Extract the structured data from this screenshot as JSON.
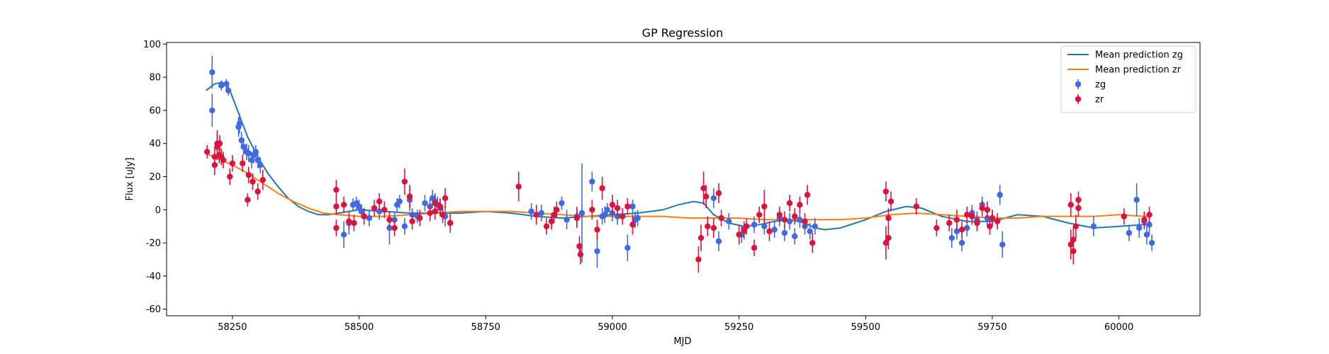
{
  "chart_data": {
    "type": "scatter",
    "title": "GP Regression",
    "xlabel": "MJD",
    "ylabel": "Flux [uJy]",
    "xlim": [
      58120,
      60160
    ],
    "ylim": [
      -64,
      101
    ],
    "xticks": [
      58250,
      58500,
      58750,
      59000,
      59250,
      59500,
      59750,
      60000
    ],
    "yticks": [
      -60,
      -40,
      -20,
      0,
      20,
      40,
      60,
      80,
      100
    ],
    "grid": false,
    "legend_position": "top-right",
    "legend": [
      {
        "label": "Mean prediction zg",
        "kind": "line",
        "color": "#1f77b4"
      },
      {
        "label": "Mean prediction zr",
        "kind": "line",
        "color": "#ff7f0e"
      },
      {
        "label": "zg",
        "kind": "errorbar",
        "color": "#4169e1"
      },
      {
        "label": "zr",
        "kind": "errorbar",
        "color": "#dc143c"
      }
    ],
    "lines": [
      {
        "name": "Mean prediction zg",
        "color": "#1f77b4",
        "x": [
          58198,
          58215,
          58230,
          58245,
          58260,
          58280,
          58300,
          58320,
          58340,
          58360,
          58380,
          58400,
          58420,
          58440,
          58460,
          58500,
          58550,
          58600,
          58650,
          58700,
          58750,
          58800,
          58850,
          58900,
          58950,
          59000,
          59050,
          59100,
          59130,
          59160,
          59180,
          59200,
          59230,
          59260,
          59290,
          59320,
          59350,
          59380,
          59400,
          59420,
          59450,
          59500,
          59540,
          59580,
          59610,
          59650,
          59700,
          59750,
          59800,
          59850,
          59900,
          59950,
          60000,
          60050,
          60065
        ],
        "y": [
          72,
          76,
          77,
          72,
          60,
          44,
          32,
          22,
          14,
          7,
          2,
          -1,
          -3,
          -3,
          -2,
          0,
          -1,
          -2,
          -2,
          -2,
          -1,
          -2,
          -4,
          -5,
          -4,
          -3,
          -2,
          0,
          3,
          5,
          4,
          -3,
          -8,
          -10,
          -9,
          -7,
          -6,
          -8,
          -11,
          -12,
          -11,
          -6,
          -1,
          2,
          1,
          -4,
          -7,
          -7,
          -3,
          -4,
          -8,
          -11,
          -10,
          -9,
          -9
        ]
      },
      {
        "name": "Mean prediction zr",
        "color": "#ff7f0e",
        "x": [
          58198,
          58220,
          58250,
          58280,
          58310,
          58340,
          58370,
          58400,
          58430,
          58460,
          58500,
          58550,
          58600,
          58650,
          58700,
          58750,
          58800,
          58850,
          58900,
          58950,
          59000,
          59050,
          59100,
          59150,
          59200,
          59250,
          59300,
          59350,
          59400,
          59450,
          59500,
          59550,
          59600,
          59650,
          59700,
          59750,
          59800,
          59850,
          59900,
          59950,
          60000,
          60050,
          60065
        ],
        "y": [
          34,
          31,
          27,
          22,
          16,
          10,
          5,
          1,
          -2,
          -3,
          -4,
          -4,
          -3,
          -2,
          -1,
          -1,
          -1,
          -2,
          -3,
          -4,
          -4,
          -4,
          -4,
          -5,
          -5,
          -5,
          -6,
          -6,
          -6,
          -6,
          -5,
          -3,
          -2,
          -3,
          -4,
          -5,
          -5,
          -4,
          -4,
          -4,
          -3,
          -4,
          -4
        ]
      }
    ],
    "series": [
      {
        "name": "zg",
        "color": "#4169e1",
        "x": [
          58210,
          58210,
          58228,
          58238,
          58242,
          58262,
          58264,
          58268,
          58272,
          58278,
          58282,
          58288,
          58292,
          58296,
          58300,
          58305,
          58470,
          58480,
          58488,
          58495,
          58500,
          58505,
          58520,
          58540,
          58560,
          58570,
          58575,
          58580,
          58590,
          58600,
          58605,
          58615,
          58630,
          58640,
          58645,
          58650,
          58655,
          58660,
          58670,
          58680,
          58840,
          58860,
          58880,
          58900,
          58910,
          58930,
          58940,
          58960,
          58970,
          58980,
          58985,
          58990,
          59000,
          59010,
          59030,
          59040,
          59045,
          59050,
          59200,
          59210,
          59230,
          59255,
          59260,
          59280,
          59300,
          59320,
          59330,
          59340,
          59350,
          59360,
          59370,
          59380,
          59390,
          59400,
          59670,
          59680,
          59690,
          59700,
          59710,
          59720,
          59730,
          59740,
          59750,
          59765,
          59770,
          59950,
          60020,
          60035,
          60040,
          60050,
          60055,
          60060,
          60065
        ],
        "y": [
          83,
          60,
          75,
          76,
          72,
          50,
          52,
          42,
          38,
          35,
          34,
          30,
          33,
          35,
          30,
          27,
          -15,
          -8,
          3,
          4,
          2,
          -1,
          -5,
          -1,
          -11,
          -6,
          3,
          5,
          -10,
          6,
          -3,
          -4,
          4,
          2,
          7,
          5,
          3,
          1,
          -4,
          -8,
          -1,
          -2,
          -7,
          4,
          -6,
          -4,
          -2,
          17,
          -25,
          -4,
          -3,
          0,
          -2,
          -4,
          -23,
          2,
          -6,
          -5,
          7,
          -19,
          -7,
          -15,
          -13,
          -9,
          -10,
          -12,
          -5,
          -14,
          -7,
          -16,
          -6,
          -10,
          -13,
          -10,
          -17,
          -13,
          -20,
          -11,
          -2,
          -6,
          3,
          -5,
          -5,
          9,
          -21,
          -10,
          -14,
          6,
          -11,
          -7,
          -15,
          -9,
          -20
        ],
        "err": [
          10,
          10,
          3,
          3,
          3,
          6,
          6,
          5,
          5,
          5,
          5,
          5,
          5,
          4,
          5,
          5,
          8,
          7,
          4,
          4,
          4,
          4,
          5,
          5,
          10,
          5,
          4,
          4,
          5,
          7,
          4,
          4,
          5,
          5,
          5,
          5,
          5,
          5,
          6,
          6,
          5,
          5,
          5,
          4,
          6,
          6,
          30,
          6,
          10,
          5,
          5,
          4,
          5,
          5,
          8,
          4,
          5,
          5,
          6,
          6,
          5,
          5,
          5,
          5,
          5,
          5,
          5,
          5,
          5,
          5,
          5,
          5,
          5,
          5,
          6,
          5,
          5,
          5,
          5,
          5,
          5,
          5,
          5,
          6,
          8,
          6,
          5,
          10,
          6,
          5,
          6,
          6,
          5
        ]
      },
      {
        "name": "zr",
        "color": "#dc143c",
        "x": [
          58200,
          58215,
          58215,
          58220,
          58220,
          58224,
          58225,
          58228,
          58232,
          58245,
          58250,
          58270,
          58280,
          58282,
          58290,
          58300,
          58310,
          58455,
          58455,
          58455,
          58470,
          58480,
          58490,
          58510,
          58530,
          58540,
          58550,
          58560,
          58570,
          58590,
          58600,
          58605,
          58620,
          58640,
          58650,
          58650,
          58660,
          58665,
          58670,
          58680,
          58815,
          58850,
          58870,
          58880,
          58885,
          58890,
          58930,
          58935,
          58937,
          58960,
          58970,
          58980,
          59000,
          59010,
          59020,
          59030,
          59040,
          59170,
          59175,
          59180,
          59185,
          59188,
          59200,
          59210,
          59215,
          59250,
          59260,
          59265,
          59280,
          59290,
          59300,
          59310,
          59330,
          59340,
          59350,
          59360,
          59370,
          59380,
          59385,
          59395,
          59540,
          59540,
          59545,
          59545,
          59550,
          59600,
          59640,
          59665,
          59680,
          59690,
          59700,
          59710,
          59720,
          59730,
          59740,
          59745,
          59750,
          59760,
          59905,
          59905,
          59910,
          59910,
          59915,
          59920,
          59920,
          60010,
          60050,
          60060
        ],
        "y": [
          35,
          32,
          27,
          38,
          40,
          33,
          40,
          32,
          30,
          20,
          28,
          28,
          6,
          21,
          17,
          11,
          18,
          12,
          2,
          -11,
          3,
          -7,
          -8,
          -4,
          1,
          5,
          0,
          -6,
          -11,
          17,
          8,
          -7,
          -5,
          -2,
          4,
          -1,
          2,
          -3,
          7,
          -8,
          14,
          -3,
          -10,
          -7,
          -3,
          0,
          -5,
          -22,
          -27,
          0,
          -12,
          13,
          3,
          1,
          -4,
          2,
          -9,
          -30,
          -17,
          13,
          8,
          -10,
          -11,
          10,
          -5,
          -15,
          -12,
          -10,
          -23,
          -3,
          2,
          -13,
          -3,
          -6,
          4,
          -4,
          3,
          -7,
          9,
          -20,
          -20,
          11,
          -5,
          -17,
          5,
          2,
          -11,
          -8,
          -6,
          -12,
          -3,
          -4,
          -8,
          1,
          0,
          -10,
          -5,
          -7,
          -21,
          3,
          -25,
          -18,
          -10,
          1,
          6,
          -4,
          -6,
          -3
        ],
        "err": [
          4,
          6,
          6,
          8,
          8,
          5,
          5,
          5,
          5,
          5,
          5,
          5,
          4,
          5,
          5,
          5,
          6,
          6,
          5,
          5,
          5,
          5,
          5,
          5,
          5,
          5,
          5,
          5,
          5,
          8,
          7,
          5,
          5,
          5,
          5,
          5,
          5,
          5,
          6,
          5,
          9,
          6,
          5,
          5,
          5,
          5,
          6,
          6,
          6,
          6,
          6,
          7,
          6,
          5,
          5,
          5,
          6,
          8,
          8,
          10,
          7,
          6,
          6,
          6,
          5,
          6,
          5,
          5,
          5,
          5,
          10,
          6,
          5,
          5,
          5,
          5,
          5,
          5,
          6,
          6,
          10,
          6,
          6,
          7,
          6,
          5,
          5,
          5,
          6,
          5,
          5,
          5,
          5,
          5,
          5,
          5,
          5,
          5,
          9,
          7,
          8,
          8,
          7,
          5,
          5,
          5,
          5,
          5
        ]
      }
    ]
  }
}
